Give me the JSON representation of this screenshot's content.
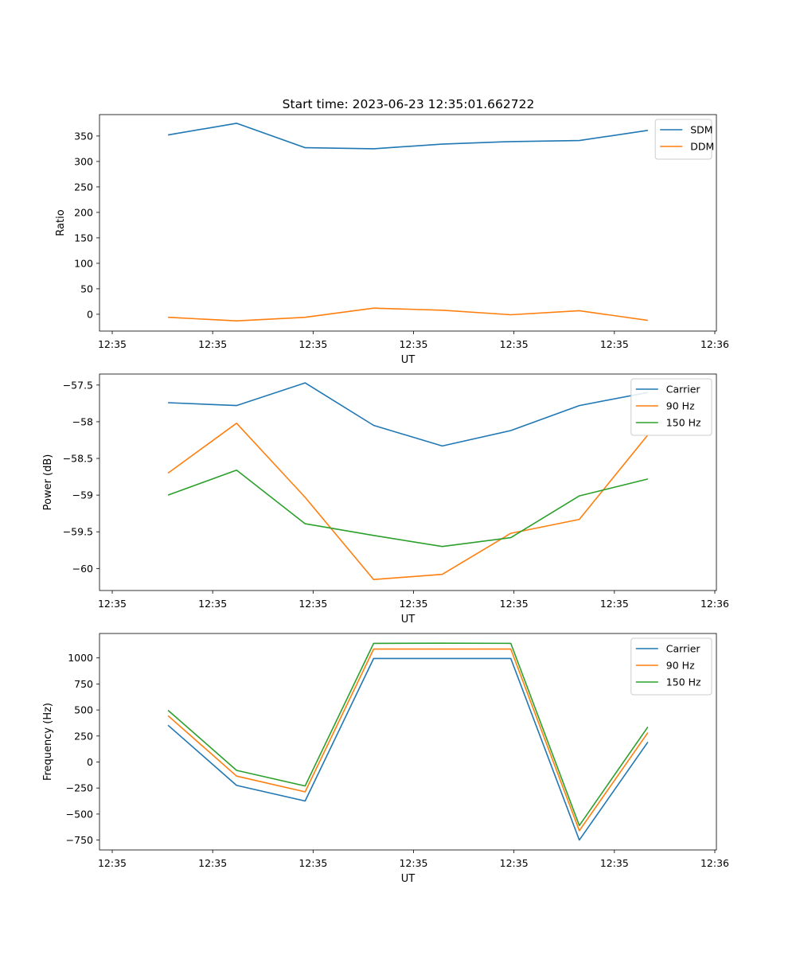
{
  "figure": {
    "title": "Start time: 2023-06-23 12:35:01.662722"
  },
  "chart_data": [
    {
      "type": "line",
      "title": "Start time: 2023-06-23 12:35:01.662722",
      "xlabel": "UT",
      "ylabel": "Ratio",
      "x_tick_labels": [
        "12:35",
        "12:35",
        "12:35",
        "12:35",
        "12:35",
        "12:35",
        "12:36"
      ],
      "x": [
        1,
        2,
        3,
        4,
        5,
        6,
        7,
        8
      ],
      "xlim": [
        0,
        9
      ],
      "ylim": [
        -33,
        392
      ],
      "y_ticks": [
        0,
        50,
        100,
        150,
        200,
        250,
        300,
        350
      ],
      "legend_position": "top-right",
      "grid": false,
      "series": [
        {
          "name": "SDM",
          "color": "#1f77b4",
          "values": [
            352,
            375,
            327,
            325,
            334,
            339,
            341,
            361
          ]
        },
        {
          "name": "DDM",
          "color": "#ff7f0e",
          "values": [
            -6,
            -13,
            -6,
            12,
            8,
            -1,
            7,
            -12
          ]
        }
      ]
    },
    {
      "type": "line",
      "title": "",
      "xlabel": "UT",
      "ylabel": "Power (dB)",
      "x_tick_labels": [
        "12:35",
        "12:35",
        "12:35",
        "12:35",
        "12:35",
        "12:35",
        "12:36"
      ],
      "x": [
        1,
        2,
        3,
        4,
        5,
        6,
        7,
        8
      ],
      "xlim": [
        0,
        9
      ],
      "ylim": [
        -60.3,
        -57.35
      ],
      "y_ticks": [
        -60.0,
        -59.5,
        -59.0,
        -58.5,
        -58.0,
        -57.5
      ],
      "legend_position": "top-right",
      "grid": false,
      "series": [
        {
          "name": "Carrier",
          "color": "#1f77b4",
          "values": [
            -57.74,
            -57.78,
            -57.47,
            -58.05,
            -58.33,
            -58.12,
            -57.78,
            -57.6
          ]
        },
        {
          "name": "90 Hz",
          "color": "#ff7f0e",
          "values": [
            -58.7,
            -58.02,
            -59.03,
            -60.15,
            -60.08,
            -59.52,
            -59.33,
            -58.18
          ]
        },
        {
          "name": "150 Hz",
          "color": "#2ca02c",
          "values": [
            -59.0,
            -58.66,
            -59.39,
            -59.55,
            -59.7,
            -59.58,
            -59.01,
            -58.78
          ]
        }
      ]
    },
    {
      "type": "line",
      "title": "",
      "xlabel": "UT",
      "ylabel": "Frequency (Hz)",
      "x_tick_labels": [
        "12:35",
        "12:35",
        "12:35",
        "12:35",
        "12:35",
        "12:35",
        "12:36"
      ],
      "x": [
        1,
        2,
        3,
        4,
        5,
        6,
        7,
        8
      ],
      "xlim": [
        0,
        9
      ],
      "ylim": [
        -845,
        1235
      ],
      "y_ticks": [
        -750,
        -500,
        -250,
        0,
        250,
        500,
        750,
        1000
      ],
      "legend_position": "top-right",
      "grid": false,
      "series": [
        {
          "name": "Carrier",
          "color": "#1f77b4",
          "values": [
            353,
            -225,
            -375,
            995,
            995,
            995,
            -750,
            192
          ]
        },
        {
          "name": "90 Hz",
          "color": "#ff7f0e",
          "values": [
            445,
            -135,
            -287,
            1085,
            1085,
            1085,
            -660,
            282
          ]
        },
        {
          "name": "150 Hz",
          "color": "#2ca02c",
          "values": [
            497,
            -80,
            -230,
            1140,
            1142,
            1140,
            -610,
            337
          ]
        }
      ]
    }
  ]
}
